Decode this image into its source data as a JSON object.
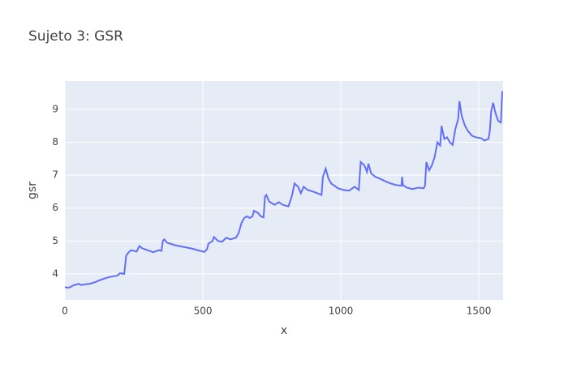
{
  "chart_data": {
    "type": "line",
    "title": "Sujeto 3: GSR",
    "x_label": "x",
    "y_label": "gsr",
    "xlim": [
      0,
      1588
    ],
    "ylim": [
      3.21,
      9.86
    ],
    "xticks": [
      0,
      500,
      1000,
      1500
    ],
    "yticks": [
      4,
      5,
      6,
      7,
      8,
      9
    ],
    "grid": true,
    "x": [
      0,
      10,
      20,
      30,
      50,
      60,
      70,
      90,
      110,
      130,
      150,
      170,
      190,
      200,
      215,
      222,
      230,
      240,
      260,
      270,
      280,
      300,
      320,
      340,
      350,
      355,
      360,
      370,
      400,
      430,
      460,
      490,
      505,
      515,
      520,
      535,
      540,
      555,
      570,
      585,
      600,
      620,
      630,
      640,
      650,
      660,
      670,
      680,
      685,
      700,
      710,
      720,
      725,
      730,
      740,
      760,
      775,
      790,
      810,
      820,
      825,
      832,
      845,
      855,
      865,
      880,
      900,
      930,
      935,
      945,
      955,
      965,
      990,
      1010,
      1030,
      1050,
      1065,
      1072,
      1085,
      1095,
      1100,
      1110,
      1125,
      1140,
      1160,
      1180,
      1200,
      1220,
      1222,
      1225,
      1240,
      1260,
      1280,
      1300,
      1305,
      1310,
      1320,
      1330,
      1340,
      1350,
      1360,
      1365,
      1375,
      1385,
      1395,
      1405,
      1415,
      1425,
      1430,
      1438,
      1450,
      1460,
      1475,
      1490,
      1510,
      1520,
      1535,
      1540,
      1545,
      1552,
      1560,
      1570,
      1580,
      1585
    ],
    "series": [
      {
        "name": "gsr",
        "color": "#636efa",
        "values": [
          3.6,
          3.58,
          3.6,
          3.65,
          3.7,
          3.66,
          3.68,
          3.7,
          3.75,
          3.82,
          3.88,
          3.92,
          3.95,
          4.02,
          4.0,
          4.55,
          4.65,
          4.72,
          4.68,
          4.85,
          4.78,
          4.72,
          4.66,
          4.72,
          4.7,
          5.0,
          5.05,
          4.95,
          4.87,
          4.82,
          4.77,
          4.7,
          4.67,
          4.75,
          4.92,
          5.0,
          5.12,
          5.0,
          4.98,
          5.1,
          5.05,
          5.1,
          5.25,
          5.55,
          5.7,
          5.75,
          5.7,
          5.75,
          5.92,
          5.85,
          5.75,
          5.72,
          6.35,
          6.4,
          6.2,
          6.1,
          6.18,
          6.1,
          6.05,
          6.3,
          6.45,
          6.75,
          6.65,
          6.45,
          6.65,
          6.55,
          6.5,
          6.4,
          6.95,
          7.2,
          6.9,
          6.75,
          6.6,
          6.55,
          6.53,
          6.65,
          6.55,
          7.4,
          7.3,
          7.1,
          7.35,
          7.05,
          6.95,
          6.9,
          6.82,
          6.75,
          6.7,
          6.68,
          6.95,
          6.7,
          6.62,
          6.58,
          6.62,
          6.6,
          6.68,
          7.4,
          7.15,
          7.3,
          7.55,
          8.0,
          7.9,
          8.5,
          8.1,
          8.15,
          8.0,
          7.92,
          8.4,
          8.7,
          9.25,
          8.8,
          8.5,
          8.35,
          8.2,
          8.15,
          8.12,
          8.05,
          8.1,
          8.35,
          8.95,
          9.2,
          8.9,
          8.65,
          8.6,
          9.55
        ]
      }
    ]
  }
}
